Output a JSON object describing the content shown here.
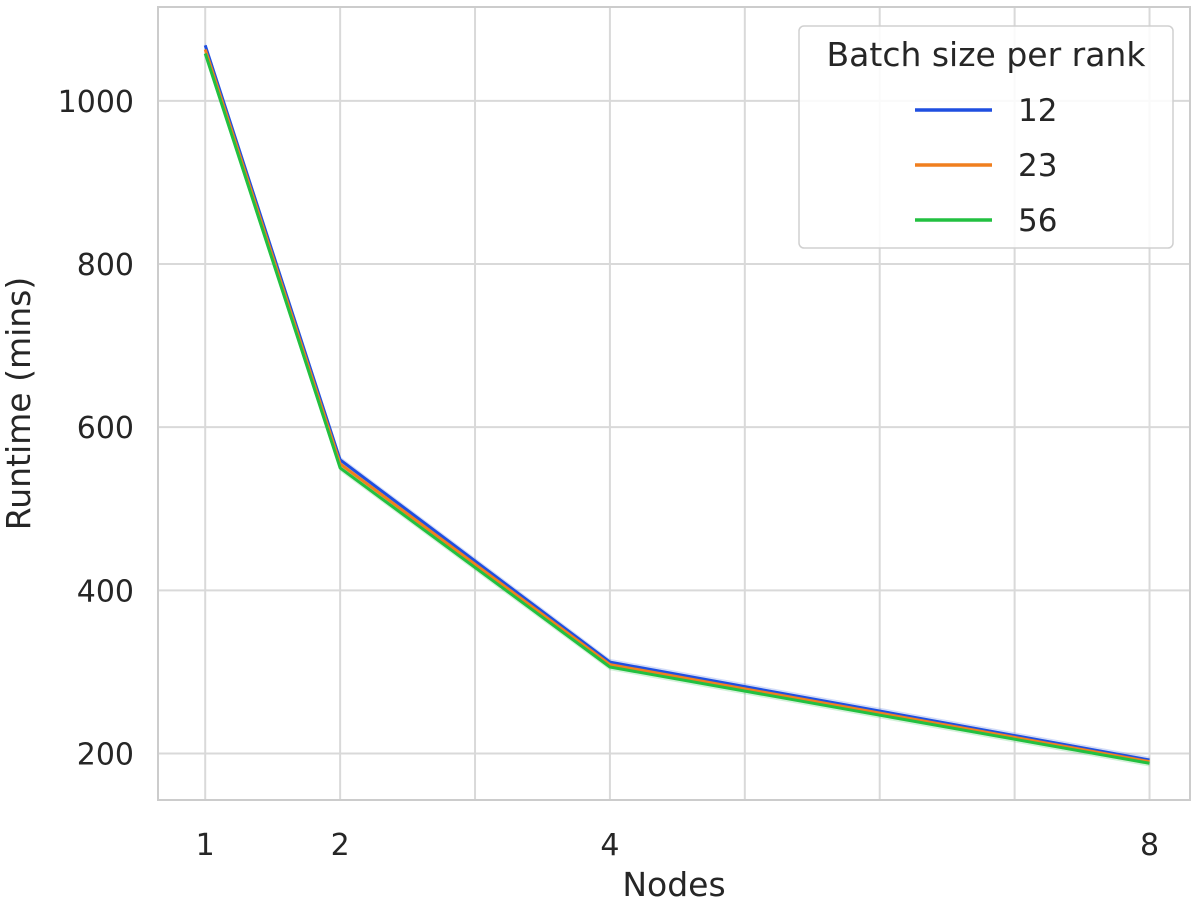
{
  "chart_data": {
    "type": "line",
    "xlabel": "Nodes",
    "ylabel": "Runtime (mins)",
    "x": [
      1,
      2,
      4,
      8
    ],
    "x_ticks": [
      "1",
      "2",
      "4",
      "8"
    ],
    "y_ticks": [
      "200",
      "400",
      "600",
      "800",
      "1000"
    ],
    "xlim": [
      0.65,
      8.3
    ],
    "ylim": [
      143,
      1115
    ],
    "grid": true,
    "legend": {
      "title": "Batch size per rank",
      "placement": "top-right"
    },
    "series": [
      {
        "name": "12",
        "color": "#1f4fe0",
        "values": [
          1068,
          560,
          312,
          192
        ]
      },
      {
        "name": "23",
        "color": "#f07f1e",
        "values": [
          1063,
          555,
          309,
          190
        ]
      },
      {
        "name": "56",
        "color": "#22c040",
        "values": [
          1058,
          550,
          306,
          188
        ]
      }
    ]
  }
}
